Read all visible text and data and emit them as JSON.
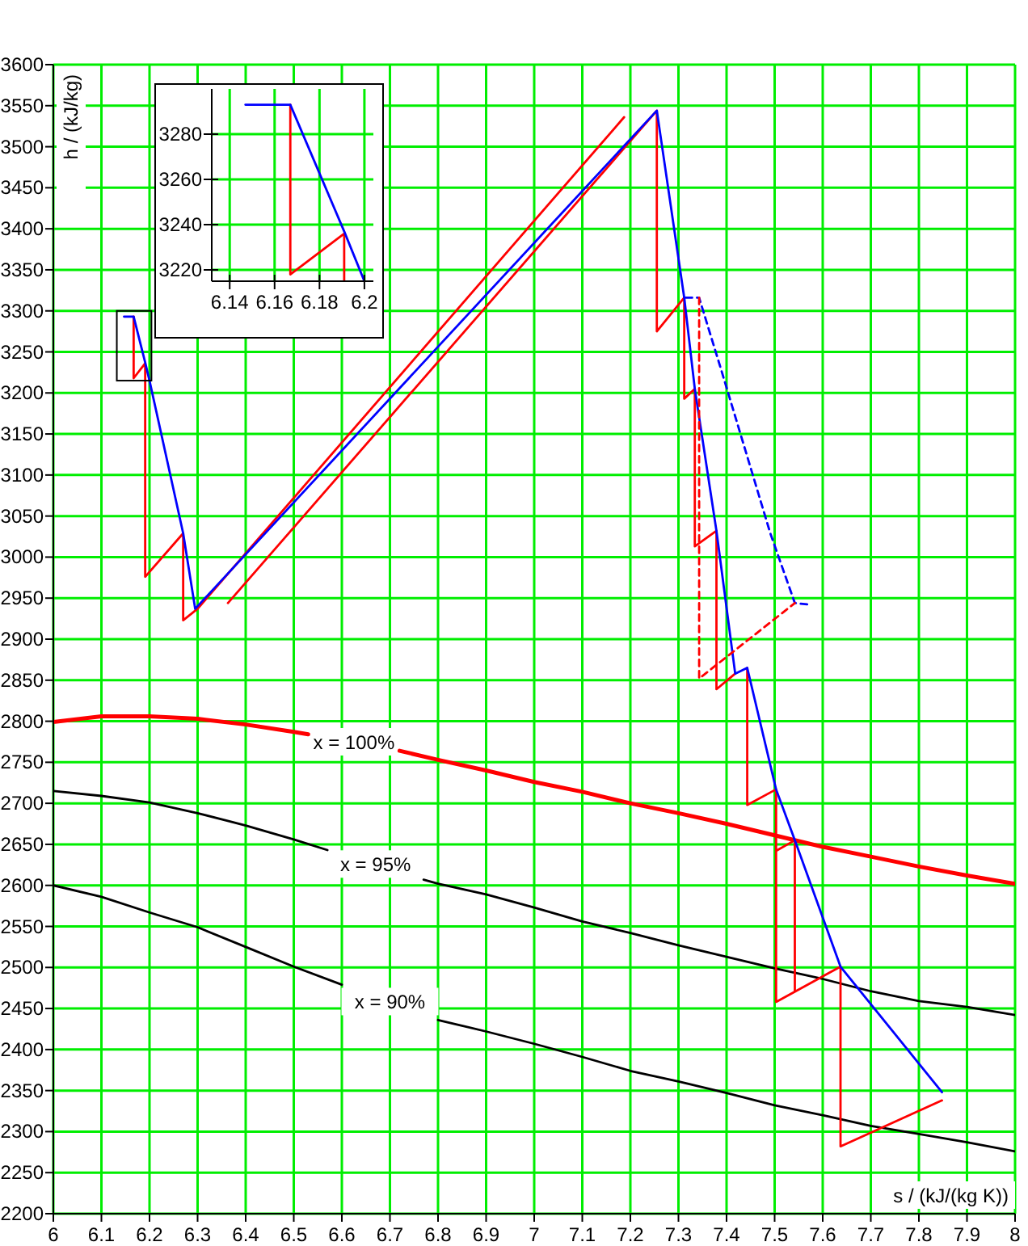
{
  "chart_data": [
    {
      "type": "line",
      "xlabel": "s / (kJ/(kg K))",
      "ylabel": "h / (kJ/kg)",
      "xlim": [
        6,
        8
      ],
      "ylim": [
        2200,
        3600
      ],
      "xticks": [
        6,
        6.1,
        6.2,
        6.3,
        6.4,
        6.5,
        6.6,
        6.7,
        6.8,
        6.9,
        7,
        7.1,
        7.2,
        7.3,
        7.4,
        7.5,
        7.6,
        7.7,
        7.8,
        7.9,
        8
      ],
      "yticks": [
        2200,
        2250,
        2300,
        2350,
        2400,
        2450,
        2500,
        2550,
        2600,
        2650,
        2700,
        2750,
        2800,
        2850,
        2900,
        2950,
        3000,
        3050,
        3100,
        3150,
        3200,
        3250,
        3300,
        3350,
        3400,
        3450,
        3500,
        3550,
        3600
      ],
      "grid": true,
      "marker": "none",
      "series": [
        {
          "name": "x = 100%",
          "color": "#ff0000",
          "x": [
            6,
            6.1,
            6.2,
            6.3,
            6.4,
            6.5,
            6.53,
            6.6,
            6.72,
            6.8,
            6.9,
            7,
            7.1,
            7.2,
            7.3,
            7.4,
            7.5,
            7.6,
            7.7,
            7.8,
            7.9,
            8
          ],
          "values": [
            2799,
            2806,
            2806,
            2803,
            2796,
            2787,
            2784,
            null,
            2764,
            2753,
            2740,
            2726,
            2714,
            2700,
            2688,
            2675,
            2661,
            2647,
            2635,
            2623,
            2612,
            2602
          ]
        },
        {
          "name": "x = 95%",
          "color": "#000000",
          "x": [
            6,
            6.1,
            6.2,
            6.3,
            6.4,
            6.5,
            6.57,
            6.65,
            6.77,
            6.8,
            6.9,
            7,
            7.1,
            7.2,
            7.3,
            7.4,
            7.5,
            7.6,
            7.7,
            7.8,
            7.9,
            8
          ],
          "values": [
            2715,
            2709,
            2701,
            2688,
            2673,
            2656,
            2643,
            null,
            2607,
            2602,
            2589,
            2573,
            2556,
            2542,
            2527,
            2513,
            2499,
            2486,
            2471,
            2459,
            2452,
            2442
          ]
        },
        {
          "name": "x = 90%",
          "color": "#000000",
          "x": [
            6,
            6.1,
            6.2,
            6.3,
            6.4,
            6.5,
            6.6,
            6.7,
            6.8,
            6.9,
            7,
            7.1,
            7.2,
            7.3,
            7.4,
            7.5,
            7.6,
            7.7,
            7.8,
            7.9,
            8
          ],
          "values": [
            2600,
            2586,
            2567,
            2549,
            2525,
            2501,
            2479,
            null,
            2436,
            2422,
            2407,
            2391,
            2374,
            2361,
            2347,
            2332,
            2320,
            2307,
            2297,
            2287,
            2276
          ]
        },
        {
          "color": "#ff0000",
          "x": [
            6.167,
            6.167,
            6.191,
            6.191,
            6.27,
            6.27,
            6.3,
            7.187
          ],
          "values": [
            3293,
            3218,
            3236,
            2976,
            3029,
            2923,
            2937,
            3536
          ]
        },
        {
          "color": "#ff0000",
          "x": [
            6.363,
            7.255,
            7.255,
            7.312,
            7.312,
            7.334,
            7.334,
            7.379,
            7.379,
            7.418
          ],
          "values": [
            2944,
            3544,
            3275,
            3316,
            3193,
            3205,
            3013,
            3032,
            2839,
            2858
          ]
        },
        {
          "color": "#ff0000",
          "x": [
            7.443,
            7.443,
            7.503,
            7.503,
            7.637,
            7.637,
            7.848
          ],
          "values": [
            2865,
            2698,
            2717,
            2458,
            2501,
            2282,
            2338
          ]
        },
        {
          "color": "#ff0000",
          "x": [
            7.503,
            7.542,
            7.542
          ],
          "values": [
            2642,
            2655,
            2471
          ]
        },
        {
          "color": "#0000ff",
          "x": [
            6.147,
            6.167,
            6.191,
            6.2,
            6.27,
            6.295,
            7.255,
            7.312,
            7.334,
            7.379,
            7.418,
            7.443,
            7.503,
            7.542,
            7.637,
            7.848
          ],
          "values": [
            3293,
            3293,
            3237,
            3215,
            3029,
            2937,
            3544,
            3316,
            3205,
            3032,
            2858,
            2865,
            2717,
            2655,
            2501,
            2348
          ]
        },
        {
          "color": "#0000ff",
          "line_style": "dashed",
          "x": [
            7.315,
            7.343,
            7.39,
            7.491,
            7.542,
            7.575
          ],
          "values": [
            3316,
            3316,
            3226,
            3029,
            2944,
            2942
          ]
        },
        {
          "color": "#ff0000",
          "line_style": "dashed",
          "x": [
            7.343,
            7.343,
            7.542
          ],
          "values": [
            3316,
            2852,
            2944
          ]
        }
      ]
    },
    {
      "type": "line",
      "xlim": [
        6.132,
        6.204
      ],
      "ylim": [
        3215,
        3300
      ],
      "xticks": [
        6.14,
        6.16,
        6.18,
        6.2
      ],
      "yticks": [
        3220,
        3240,
        3260,
        3280
      ],
      "grid": true,
      "marker": "none",
      "series": [
        {
          "color": "#ff0000",
          "x": [
            6.167,
            6.167,
            6.191,
            6.191
          ],
          "values": [
            3293,
            3218,
            3236,
            3215
          ]
        },
        {
          "color": "#0000ff",
          "x": [
            6.147,
            6.167,
            6.191,
            6.2
          ],
          "values": [
            3293,
            3293,
            3237,
            3215
          ]
        }
      ]
    }
  ]
}
